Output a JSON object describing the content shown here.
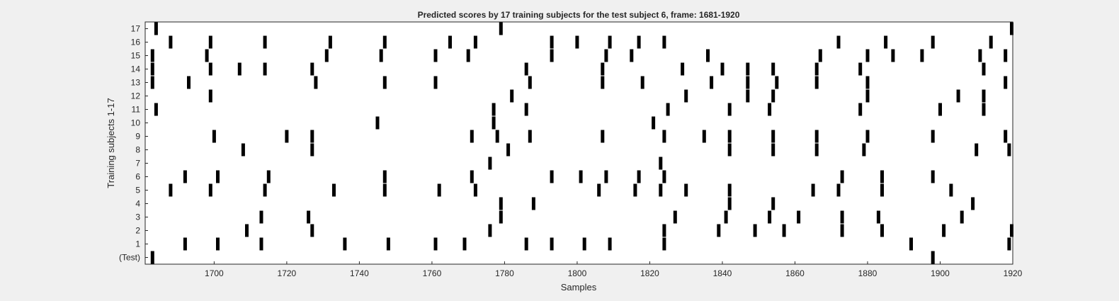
{
  "chart_data": {
    "type": "raster",
    "title": "Predicted scores by 17 training subjects for the test subject 6, frame: 1681-1920",
    "xlabel": "Samples",
    "ylabel": "Training subjects 1-17",
    "xlim": [
      1681,
      1920
    ],
    "xticks": [
      1700,
      1720,
      1740,
      1760,
      1780,
      1800,
      1820,
      1840,
      1860,
      1880,
      1900,
      1920
    ],
    "categories": [
      "(Test)",
      "1",
      "2",
      "3",
      "4",
      "5",
      "6",
      "7",
      "8",
      "9",
      "10",
      "11",
      "12",
      "13",
      "14",
      "15",
      "16",
      "17"
    ],
    "grid": false,
    "colors": {
      "event": "#000000",
      "plot_background": "#ffffff",
      "figure_background": "#f0f0f0"
    },
    "rows": [
      {
        "label": "(Test)",
        "events": [
          1683,
          1898
        ]
      },
      {
        "label": "1",
        "events": [
          1692,
          1701,
          1713,
          1736,
          1748,
          1761,
          1769,
          1786,
          1793,
          1802,
          1809,
          1824,
          1892,
          1919
        ]
      },
      {
        "label": "2",
        "events": [
          1709,
          1727,
          1776,
          1824,
          1839,
          1849,
          1857,
          1873,
          1884,
          1901,
          1920
        ]
      },
      {
        "label": "3",
        "events": [
          1713,
          1726,
          1779,
          1827,
          1841,
          1853,
          1861,
          1873,
          1883,
          1906
        ]
      },
      {
        "label": "4",
        "events": [
          1779,
          1788,
          1842,
          1854,
          1909
        ]
      },
      {
        "label": "5",
        "events": [
          1688,
          1699,
          1714,
          1733,
          1747,
          1762,
          1772,
          1806,
          1816,
          1823,
          1830,
          1842,
          1865,
          1872,
          1884,
          1903
        ]
      },
      {
        "label": "6",
        "events": [
          1692,
          1701,
          1715,
          1747,
          1771,
          1793,
          1801,
          1808,
          1817,
          1824,
          1873,
          1884,
          1898
        ]
      },
      {
        "label": "7",
        "events": [
          1776,
          1823
        ]
      },
      {
        "label": "8",
        "events": [
          1708,
          1727,
          1781,
          1842,
          1854,
          1866,
          1879,
          1910,
          1919
        ]
      },
      {
        "label": "9",
        "events": [
          1700,
          1720,
          1727,
          1771,
          1778,
          1787,
          1807,
          1824,
          1835,
          1842,
          1854,
          1866,
          1880,
          1898,
          1918
        ]
      },
      {
        "label": "10",
        "events": [
          1745,
          1777,
          1821
        ]
      },
      {
        "label": "11",
        "events": [
          1684,
          1777,
          1786,
          1825,
          1842,
          1853,
          1878,
          1900,
          1912
        ]
      },
      {
        "label": "12",
        "events": [
          1699,
          1782,
          1830,
          1847,
          1854,
          1880,
          1905,
          1912
        ]
      },
      {
        "label": "13",
        "events": [
          1683,
          1693,
          1728,
          1747,
          1761,
          1787,
          1807,
          1818,
          1837,
          1847,
          1855,
          1866,
          1880,
          1918
        ]
      },
      {
        "label": "14",
        "events": [
          1683,
          1699,
          1707,
          1714,
          1727,
          1786,
          1807,
          1829,
          1840,
          1847,
          1854,
          1866,
          1878,
          1912
        ]
      },
      {
        "label": "15",
        "events": [
          1683,
          1698,
          1731,
          1746,
          1761,
          1770,
          1793,
          1808,
          1815,
          1836,
          1867,
          1880,
          1887,
          1895,
          1911,
          1918
        ]
      },
      {
        "label": "16",
        "events": [
          1688,
          1699,
          1714,
          1732,
          1747,
          1765,
          1772,
          1793,
          1800,
          1809,
          1817,
          1824,
          1872,
          1885,
          1898,
          1914
        ]
      },
      {
        "label": "17",
        "events": [
          1684,
          1779,
          1920
        ]
      }
    ]
  }
}
